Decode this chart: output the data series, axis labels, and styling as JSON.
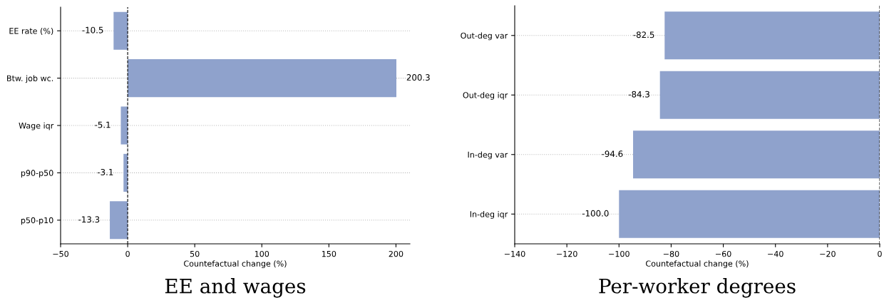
{
  "chart_data": [
    {
      "type": "bar",
      "orientation": "horizontal",
      "title": "EE and wages",
      "xlabel": "Countefactual change (%)",
      "categories": [
        "EE rate (%)",
        "Btw. job wc.",
        "Wage iqr",
        "p90-p50",
        "p50-p10"
      ],
      "values": [
        -10.5,
        200.3,
        -5.1,
        -3.1,
        -13.3
      ],
      "color": "#8fa2cc",
      "data_labels": true,
      "xlim": [
        -50,
        210.4
      ],
      "xticks": [
        {
          "value": -50,
          "label": "−50"
        },
        0,
        50,
        100,
        150,
        200
      ],
      "ref_lines": [
        {
          "axis": "x",
          "value": 0,
          "color": "#000000",
          "line_style": "dashed"
        }
      ],
      "grid": "y"
    },
    {
      "type": "bar",
      "orientation": "horizontal",
      "title": "Per-worker degrees",
      "xlabel": "Countefactual change (%)",
      "categories": [
        "Out-deg var",
        "Out-deg iqr",
        "In-deg var",
        "In-deg iqr"
      ],
      "values": [
        -82.5,
        -84.3,
        -94.6,
        -100.0
      ],
      "value_labels": [
        "-82.5",
        "-84.3",
        "-94.6",
        "-100.0"
      ],
      "color": "#8fa2cc",
      "xlim": [
        -140,
        0
      ],
      "xticks": [
        {
          "value": -140,
          "label": "−140"
        },
        {
          "value": -120,
          "label": "−120"
        },
        {
          "value": -100,
          "label": "−100"
        },
        {
          "value": -80,
          "label": "−80"
        },
        {
          "value": -60,
          "label": "−60"
        },
        {
          "value": -40,
          "label": "−40"
        },
        {
          "value": -20,
          "label": "−20"
        },
        0
      ],
      "ref_lines": [
        {
          "axis": "x",
          "value": 0,
          "color": "#000000",
          "line_style": "dashed"
        }
      ],
      "grid": "y"
    }
  ]
}
